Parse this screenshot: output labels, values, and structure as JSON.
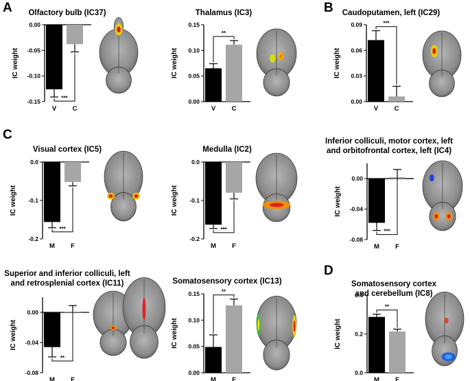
{
  "panel_letters": {
    "a": "A",
    "b": "B",
    "c": "C",
    "d": "D"
  },
  "colors": {
    "bar_v": "#000000",
    "bar_c": "#a6a6a6",
    "brain_gray": "#8c8c8c",
    "brain_dark": "#5f5f5f"
  },
  "chart_data": [
    {
      "id": "c1",
      "type": "bar",
      "title": "Olfactory bulb (IC37)",
      "ylabel": "IC weight",
      "categories": [
        "V",
        "C"
      ],
      "values": [
        -0.126,
        -0.038
      ],
      "errors": [
        0.015,
        0.015
      ],
      "ylim": [
        -0.15,
        0.0
      ],
      "yticks": [
        -0.15,
        -0.1,
        -0.05,
        0.0
      ],
      "ytick_labels": [
        "-0.15",
        "-0.10",
        "-0.05",
        "0.00"
      ],
      "significance": "***",
      "sig_side": "below"
    },
    {
      "id": "c2",
      "type": "bar",
      "title": "Thalamus (IC3)",
      "ylabel": "IC weight",
      "categories": [
        "V",
        "C"
      ],
      "values": [
        0.065,
        0.111
      ],
      "errors": [
        0.009,
        0.008
      ],
      "ylim": [
        0.0,
        0.15
      ],
      "yticks": [
        0.0,
        0.05,
        0.1,
        0.15
      ],
      "ytick_labels": [
        "0.00",
        "0.05",
        "0.10",
        "0.15"
      ],
      "significance": "**",
      "sig_side": "above"
    },
    {
      "id": "c3",
      "type": "bar",
      "title": "Caudoputamen, left (IC29)",
      "ylabel": "IC weight",
      "categories": [
        "V",
        "C"
      ],
      "values": [
        0.072,
        0.006
      ],
      "errors": [
        0.011,
        0.012
      ],
      "ylim": [
        0.0,
        0.09
      ],
      "yticks": [
        0.0,
        0.03,
        0.06,
        0.09
      ],
      "ytick_labels": [
        "0.00",
        "0.03",
        "0.06",
        "0.09"
      ],
      "significance": "***",
      "sig_side": "above"
    },
    {
      "id": "c4",
      "type": "bar",
      "title": "Visual cortex (IC5)",
      "ylabel": "IC weight",
      "categories": [
        "M",
        "F"
      ],
      "values": [
        -0.156,
        -0.052
      ],
      "errors": [
        0.015,
        0.01
      ],
      "ylim": [
        -0.2,
        0.0
      ],
      "yticks": [
        -0.2,
        -0.1,
        0.0
      ],
      "ytick_labels": [
        "-0.2",
        "-0.1",
        "0.0"
      ],
      "significance": "***",
      "sig_side": "below"
    },
    {
      "id": "c5",
      "type": "bar",
      "title": "Medulla (IC2)",
      "ylabel": "IC weight",
      "categories": [
        "M",
        "F"
      ],
      "values": [
        -0.163,
        -0.08
      ],
      "errors": [
        0.01,
        0.016
      ],
      "ylim": [
        -0.2,
        0.0
      ],
      "yticks": [
        -0.2,
        -0.1,
        0.0
      ],
      "ytick_labels": [
        "-0.2",
        "-0.1",
        "0.0"
      ],
      "significance": "***",
      "sig_side": "below"
    },
    {
      "id": "c6",
      "type": "bar",
      "title": "Inferior colliculi, motor cortex, left and orbitofrontal cortex, left (IC4)",
      "title_lines": [
        "Inferior colliculi, motor cortex, left",
        "and orbitofrontal cortex, left (IC4)"
      ],
      "ylabel": "IC weight",
      "categories": [
        "M",
        "F"
      ],
      "values": [
        -0.058,
        0.002
      ],
      "errors": [
        0.01,
        0.01
      ],
      "ylim": [
        -0.08,
        0.02
      ],
      "yticks": [
        -0.08,
        -0.04,
        0.0
      ],
      "ytick_labels": [
        "-0.08",
        "-0.04",
        "0.00"
      ],
      "significance": "***",
      "sig_side": "below"
    },
    {
      "id": "c7",
      "type": "bar",
      "title": "Superior and inferior colliculi, left and retrosplenial cortex (IC11)",
      "title_lines": [
        "Superior and inferior colliculi, left",
        "and retrosplenial cortex (IC11)"
      ],
      "ylabel": "IC weight",
      "categories": [
        "M",
        "F"
      ],
      "values": [
        -0.046,
        0.001
      ],
      "errors": [
        0.013,
        0.008
      ],
      "ylim": [
        -0.08,
        0.02
      ],
      "yticks": [
        -0.08,
        -0.04,
        0.0
      ],
      "ytick_labels": [
        "-0.08",
        "-0.04",
        "0.00"
      ],
      "significance": "**",
      "sig_side": "below"
    },
    {
      "id": "c8",
      "type": "bar",
      "title": "Somatosensory cortex (IC13)",
      "ylabel": "IC weight",
      "categories": [
        "M",
        "F"
      ],
      "values": [
        0.049,
        0.128
      ],
      "errors": [
        0.023,
        0.012
      ],
      "ylim": [
        0.0,
        0.15
      ],
      "yticks": [
        0.0,
        0.05,
        0.1,
        0.15
      ],
      "ytick_labels": [
        "0.00",
        "0.05",
        "0.10",
        "0.15"
      ],
      "significance": "**",
      "sig_side": "above"
    },
    {
      "id": "c9",
      "type": "bar",
      "title": "Somatosensory cortex and cerebellum (IC8)",
      "title_lines": [
        "Somatosensory cortex",
        "and cerebellum (IC8)"
      ],
      "ylabel": "IC weight",
      "categories": [
        "M",
        "F"
      ],
      "values": [
        0.288,
        0.213
      ],
      "errors": [
        0.014,
        0.012
      ],
      "ylim": [
        0.0,
        0.4
      ],
      "yticks": [
        0.0,
        0.2,
        0.4
      ],
      "ytick_labels": [
        "0.0",
        "0.2",
        "0.4"
      ],
      "significance": "**",
      "sig_side": "above"
    }
  ]
}
